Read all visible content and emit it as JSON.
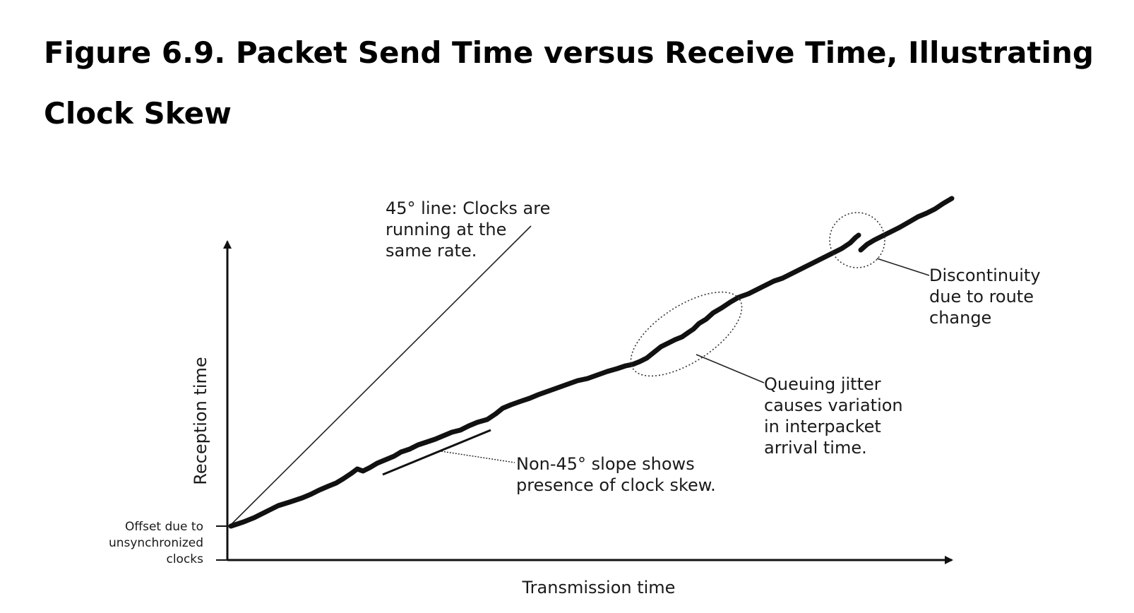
{
  "figure": {
    "title": "Figure 6.9. Packet Send Time versus Receive Time, Illustrating Clock Skew"
  },
  "diagram": {
    "x_axis_label": "Transmission time",
    "y_axis_label": "Reception time",
    "offset_label": [
      "Offset due to",
      "unsynchronized",
      "clocks"
    ],
    "line_45_label": [
      "45° line: Clocks are",
      "running at the",
      "same rate."
    ],
    "skew_label": [
      "Non-45° slope shows",
      "presence of clock skew."
    ],
    "jitter_label": [
      "Queuing jitter",
      "causes variation",
      "in interpacket",
      "arrival time."
    ],
    "discontinuity_label": [
      "Discontinuity",
      "due to route",
      "change"
    ]
  }
}
